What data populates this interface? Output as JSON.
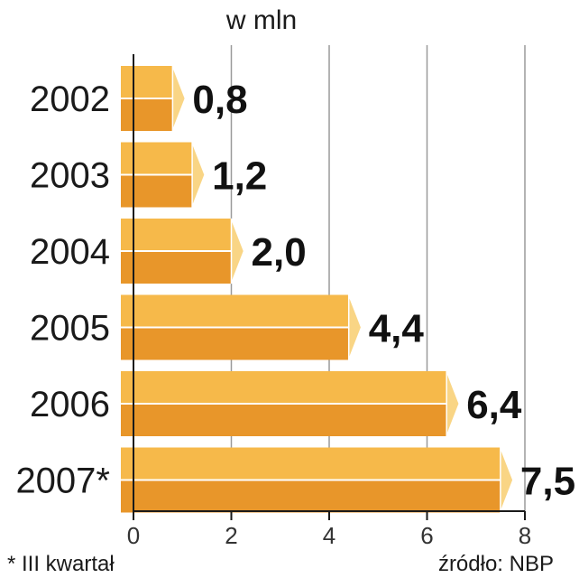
{
  "chart_data": {
    "type": "bar",
    "orientation": "horizontal",
    "title": "w mln",
    "categories": [
      "2002",
      "2003",
      "2004",
      "2005",
      "2006",
      "2007*"
    ],
    "values": [
      0.8,
      1.2,
      2.0,
      4.4,
      6.4,
      7.5
    ],
    "value_labels": [
      "0,8",
      "1,2",
      "2,0",
      "4,4",
      "6,4",
      "7,5"
    ],
    "xlim": [
      0,
      8
    ],
    "x_ticks": [
      "0",
      "2",
      "4",
      "6",
      "8"
    ],
    "grid": true,
    "footnote": "* III kwartał",
    "source": "źródło: NBP"
  },
  "colors": {
    "bar_top": "#f6b94a",
    "bar_bottom": "#e8962a",
    "bar_end": "#f9d585",
    "bar_edge": "#ffffff",
    "grid": "#9a9a9a",
    "axis": "#1a1a1a"
  }
}
